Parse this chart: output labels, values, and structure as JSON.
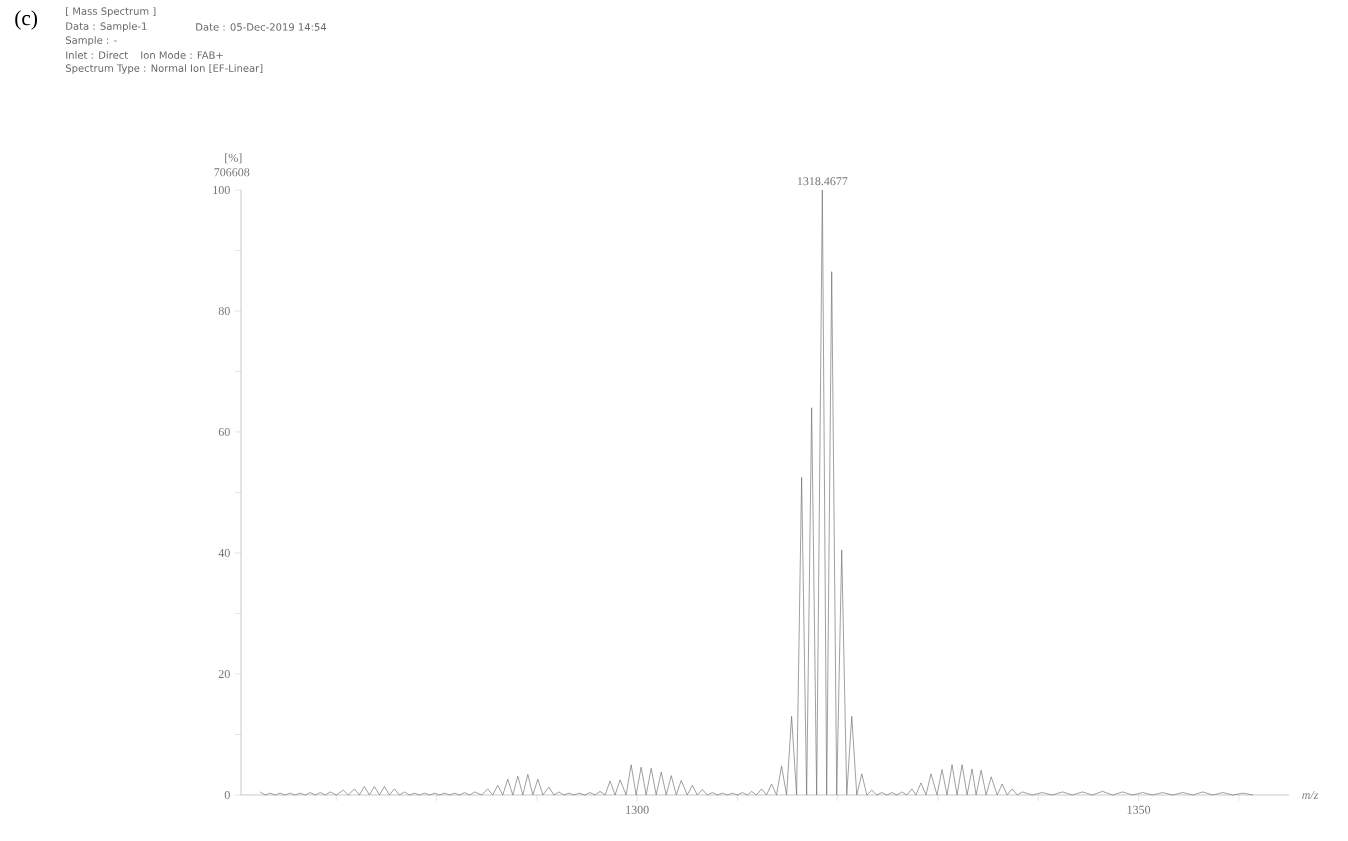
{
  "chart_data": {
    "type": "line",
    "title": "[ Mass Spectrum ]",
    "xlabel": "m/z",
    "ylabel": "[%]",
    "annotations": [
      "(c)",
      "Data : Sample-1",
      "Date : 05-Dec-2019 14:54",
      "Sample : -",
      "Inlet : Direct",
      "Ion Mode : FAB+",
      "Spectrum Type : Normal Ion  [EF-Linear]",
      "706608",
      {
        "text": "1318.4677",
        "x": 1318.4677,
        "y": 100
      }
    ],
    "x": [
      1262.4,
      1262.9,
      1263.4,
      1263.9,
      1264.4,
      1264.9,
      1265.4,
      1265.9,
      1266.4,
      1266.9,
      1267.4,
      1267.9,
      1268.4,
      1268.9,
      1269.4,
      1270.0,
      1270.7,
      1271.2,
      1271.8,
      1272.3,
      1272.8,
      1273.3,
      1273.8,
      1274.3,
      1274.8,
      1275.3,
      1275.8,
      1276.3,
      1276.8,
      1277.3,
      1277.8,
      1278.3,
      1278.8,
      1279.3,
      1279.8,
      1280.3,
      1280.8,
      1281.3,
      1281.8,
      1282.3,
      1282.8,
      1283.3,
      1283.8,
      1284.5,
      1285.1,
      1285.6,
      1286.1,
      1286.6,
      1287.1,
      1287.6,
      1288.1,
      1288.6,
      1289.1,
      1289.6,
      1290.1,
      1290.6,
      1291.2,
      1291.7,
      1292.2,
      1292.7,
      1293.2,
      1293.7,
      1294.2,
      1294.8,
      1295.3,
      1295.8,
      1296.3,
      1296.8,
      1297.3,
      1297.8,
      1298.3,
      1298.9,
      1299.4,
      1299.9,
      1300.4,
      1300.9,
      1301.4,
      1301.9,
      1302.4,
      1302.9,
      1303.4,
      1303.9,
      1304.4,
      1305.0,
      1305.5,
      1306.0,
      1306.5,
      1307.0,
      1307.5,
      1308.0,
      1308.5,
      1309.0,
      1309.5,
      1310.0,
      1310.5,
      1311.0,
      1311.4,
      1311.9,
      1312.4,
      1312.9,
      1313.4,
      1313.9,
      1314.4,
      1314.9,
      1315.4,
      1315.9,
      1316.4,
      1316.9,
      1317.4,
      1317.9,
      1318.4677,
      1318.9,
      1319.4,
      1319.9,
      1320.4,
      1320.9,
      1321.4,
      1321.9,
      1322.4,
      1322.9,
      1323.4,
      1323.9,
      1324.4,
      1324.9,
      1325.4,
      1325.9,
      1326.4,
      1326.9,
      1327.4,
      1327.8,
      1328.3,
      1328.8,
      1329.3,
      1329.9,
      1330.4,
      1330.9,
      1331.4,
      1331.9,
      1332.4,
      1332.9,
      1333.4,
      1333.8,
      1334.3,
      1334.8,
      1335.3,
      1335.9,
      1336.4,
      1336.9,
      1337.4,
      1337.9,
      1338.4,
      1339.4,
      1340.4,
      1341.4,
      1342.4,
      1343.4,
      1344.4,
      1345.4,
      1346.4,
      1347.4,
      1348.4,
      1349.4,
      1350.4,
      1351.4,
      1352.4,
      1353.4,
      1354.4,
      1355.4,
      1356.4,
      1357.4,
      1358.4,
      1359.4,
      1360.4,
      1361.4
    ],
    "values": [
      0.5,
      0,
      0.3,
      0,
      0.3,
      0,
      0.3,
      0,
      0.3,
      0,
      0.4,
      0,
      0.4,
      0,
      0.5,
      0,
      0.8,
      0,
      1.0,
      0,
      1.4,
      0,
      1.4,
      0,
      1.4,
      0,
      1.0,
      0,
      0.5,
      0,
      0.3,
      0,
      0.3,
      0,
      0.3,
      0,
      0.3,
      0,
      0.3,
      0,
      0.4,
      0,
      0.5,
      0,
      1.0,
      0,
      1.6,
      0,
      2.6,
      0,
      3.1,
      0,
      3.4,
      0,
      2.6,
      0,
      1.3,
      0,
      0.5,
      0,
      0.3,
      0,
      0.3,
      0,
      0.4,
      0,
      0.6,
      0,
      2.3,
      0,
      2.5,
      0,
      5.0,
      0,
      4.6,
      0,
      4.4,
      0,
      3.8,
      0,
      3.2,
      0,
      2.4,
      0,
      1.6,
      0,
      0.9,
      0,
      0.4,
      0,
      0.3,
      0,
      0.3,
      0,
      0.4,
      0,
      0.6,
      0,
      1.0,
      0,
      1.8,
      0,
      4.8,
      0,
      13,
      0,
      52.5,
      0,
      64,
      0,
      100,
      0,
      86.5,
      0,
      40.5,
      0,
      13,
      0,
      3.5,
      0,
      0.8,
      0,
      0.4,
      0,
      0.4,
      0,
      0.5,
      0,
      1.0,
      0,
      2.0,
      0,
      3.5,
      0,
      4.2,
      0,
      5.0,
      0,
      5.0,
      0,
      4.3,
      0,
      4.1,
      0,
      3.0,
      0,
      1.8,
      0,
      1.0,
      0,
      0.5,
      0,
      0.4,
      0,
      0.5,
      0,
      0.5,
      0,
      0.6,
      0,
      0.5,
      0,
      0.4,
      0,
      0.4,
      0,
      0.4,
      0,
      0.5,
      0,
      0.4,
      0,
      0.3,
      0
    ],
    "color": "#707070",
    "marker": "none",
    "xlim": [
      1260.5,
      1365
    ],
    "ylim": [
      0,
      100
    ],
    "xticks": [
      {
        "value": 1270,
        "label": null
      },
      {
        "value": 1280,
        "label": null
      },
      {
        "value": 1290,
        "label": null
      },
      1300,
      {
        "value": 1310,
        "label": null
      },
      {
        "value": 1320,
        "label": null
      },
      {
        "value": 1330,
        "label": null
      },
      {
        "value": 1340,
        "label": null
      },
      1350,
      {
        "value": 1360,
        "label": null
      }
    ],
    "yticks": [
      0,
      {
        "value": 10,
        "label": null
      },
      20,
      {
        "value": 30,
        "label": null
      },
      40,
      {
        "value": 50,
        "label": null
      },
      60,
      {
        "value": 70,
        "label": null
      },
      80,
      {
        "value": 90,
        "label": null
      },
      100
    ]
  }
}
